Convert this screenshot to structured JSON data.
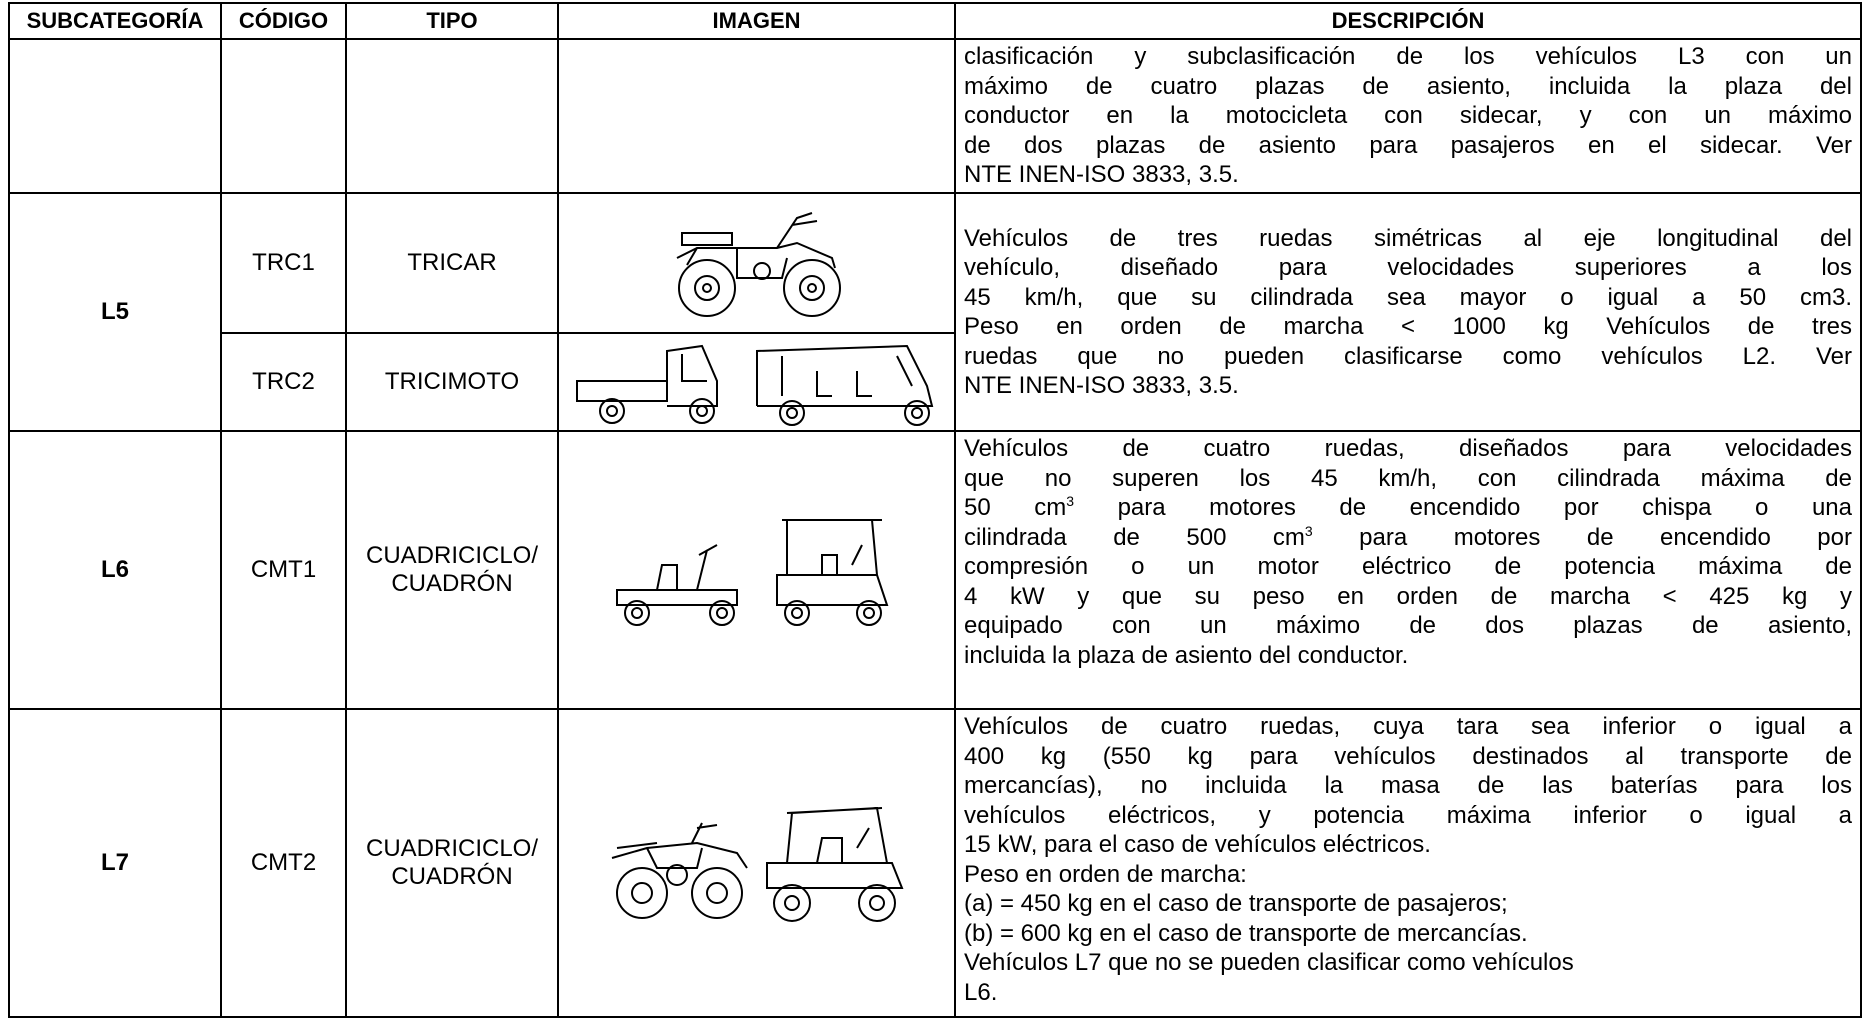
{
  "header": [
    "SUBCATEGORÍA",
    "CÓDIGO",
    "TIPO",
    "IMAGEN",
    "DESCRIPCIÓN"
  ],
  "rows": [
    {
      "description": [
        "clasificación y subclasificación de los vehículos L3 con un",
        "máximo de cuatro plazas de asiento, incluida la plaza del",
        "conductor en la motocicleta con sidecar, y con un máximo",
        "de dos plazas de asiento para pasajeros en el sidecar. Ver",
        "NTE INEN-ISO 3833, 3.5."
      ]
    },
    {
      "subcategory": "L5",
      "types": [
        {
          "code": "TRC1",
          "type": "TRICAR"
        },
        {
          "code": "TRC2",
          "type": "TRICIMOTO"
        }
      ],
      "description": [
        "Vehículos de tres ruedas simétricas al eje longitudinal del",
        "vehículo, diseñado para velocidades superiores a los",
        "45 km/h, que su cilindrada sea mayor o igual a 50 cm3.",
        "Peso en orden de marcha < 1000 kg Vehículos de tres",
        "ruedas que no pueden clasificarse como vehículos L2. Ver",
        "NTE INEN-ISO 3833, 3.5."
      ]
    },
    {
      "subcategory": "L6",
      "types": [
        {
          "code": "CMT1",
          "type": "CUADRICICLO/ CUADRÓN"
        }
      ],
      "description": [
        "Vehículos de cuatro ruedas, diseñados para velocidades",
        "que no superen los 45 km/h, con cilindrada máxima de",
        [
          "50 cm",
          "3",
          " para motores de encendido por chispa o una"
        ],
        [
          "cilindrada de 500 cm",
          "3",
          " para motores de encendido por"
        ],
        "compresión o un motor eléctrico de potencia máxima de",
        "4 kW y que su peso en orden de marcha < 425 kg y",
        "equipado con un máximo de dos plazas de asiento,",
        "incluida la plaza de asiento del conductor."
      ]
    },
    {
      "subcategory": "L7",
      "types": [
        {
          "code": "CMT2",
          "type": "CUADRICICLO/ CUADRÓN"
        }
      ],
      "description": [
        "Vehículos de cuatro ruedas, cuya tara sea inferior o igual a",
        "400 kg (550 kg para vehículos destinados al transporte de",
        "mercancías), no incluida la masa de las baterías para los",
        "vehículos eléctricos, y potencia máxima inferior o igual a",
        "15 kW, para el caso de vehículos eléctricos.",
        "Peso en orden de marcha:",
        "(a) = 450 kg en el caso de transporte de pasajeros;",
        "(b) = 600 kg en el caso de transporte de mercancías.",
        "Vehículos L7 que no se pueden clasificar como vehículos",
        "L6."
      ]
    }
  ]
}
